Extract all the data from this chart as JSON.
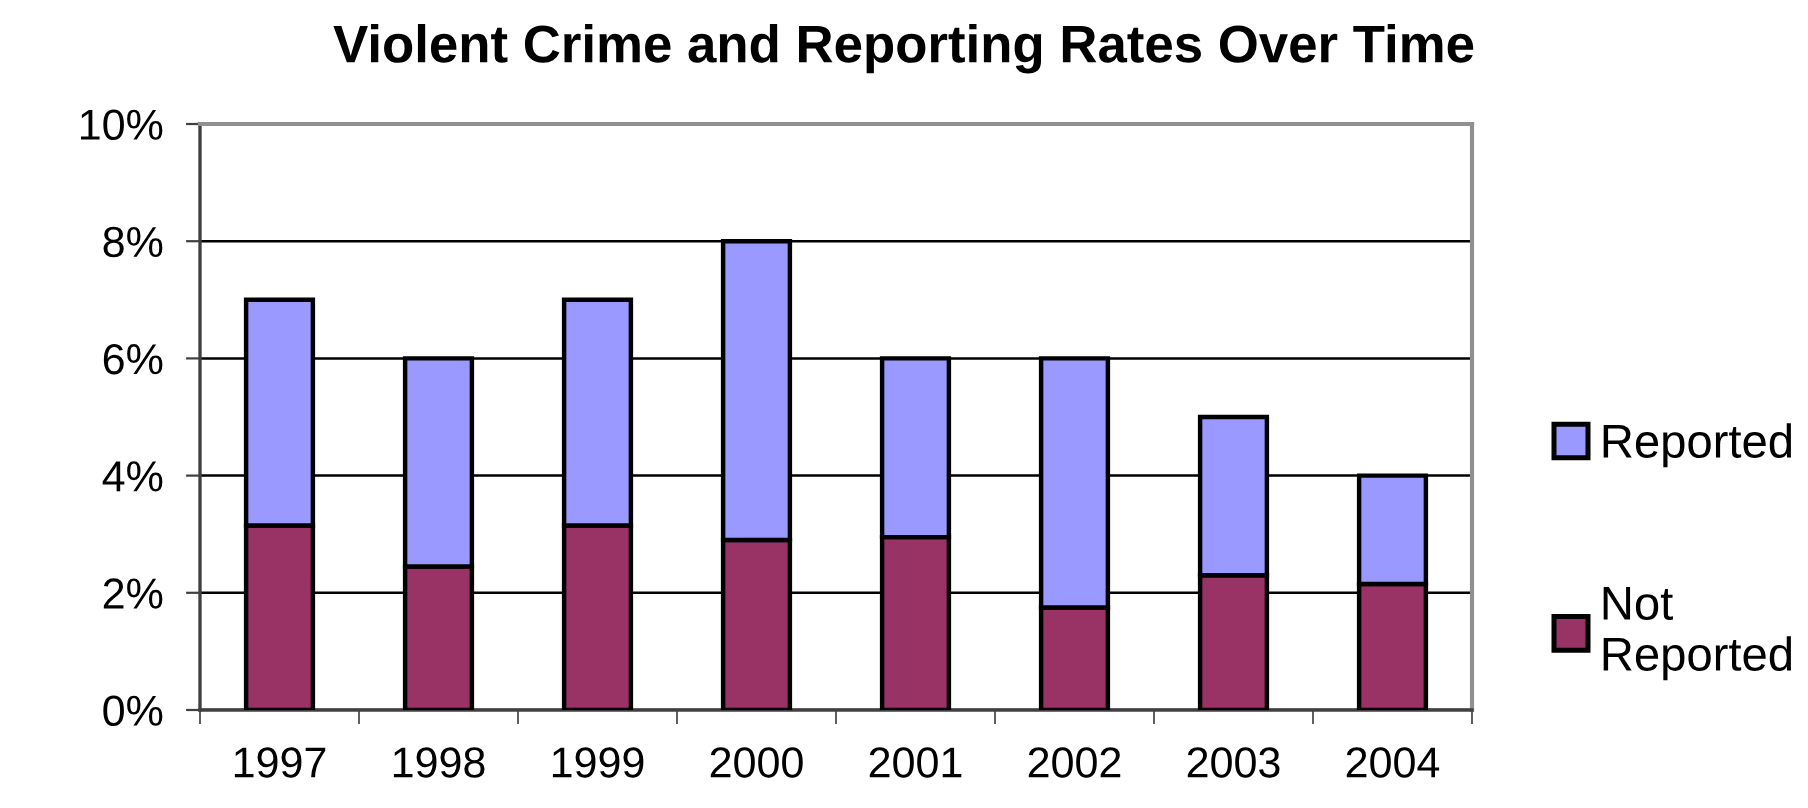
{
  "chart_data": {
    "type": "bar",
    "title": "Violent Crime and Reporting Rates Over Time",
    "categories": [
      "1997",
      "1998",
      "1999",
      "2000",
      "2001",
      "2002",
      "2003",
      "2004"
    ],
    "stacked": true,
    "series": [
      {
        "name": "Not Reported",
        "color": "#993366",
        "values": [
          3.15,
          2.45,
          3.15,
          2.9,
          2.95,
          1.75,
          2.3,
          2.15
        ]
      },
      {
        "name": "Reported",
        "color": "#9999ff",
        "values": [
          3.85,
          3.55,
          3.85,
          5.1,
          3.05,
          4.25,
          2.7,
          1.85
        ]
      }
    ],
    "ylim": [
      0,
      10
    ],
    "yticks": [
      {
        "value": 0,
        "label": "0%"
      },
      {
        "value": 2,
        "label": "2%"
      },
      {
        "value": 4,
        "label": "4%"
      },
      {
        "value": 6,
        "label": "6%"
      },
      {
        "value": 8,
        "label": "8%"
      },
      {
        "value": 10,
        "label": "10%"
      }
    ],
    "grid": "y",
    "legend": "right"
  }
}
